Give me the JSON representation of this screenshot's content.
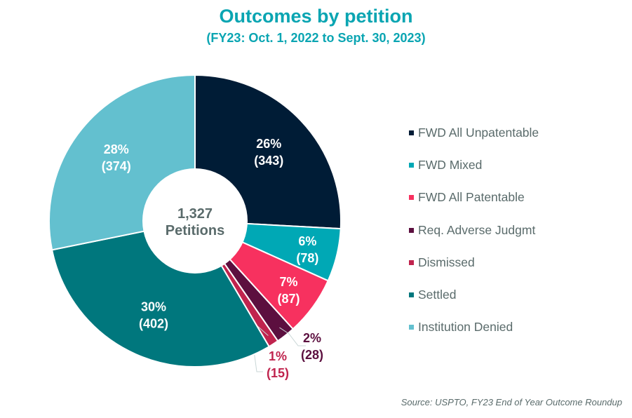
{
  "chart_data": {
    "type": "pie",
    "donut": true,
    "title": "Outcomes by petition",
    "subtitle": "(FY23: Oct. 1, 2022 to Sept. 30, 2023)",
    "center_label": {
      "value": "1,327",
      "text": "Petitions"
    },
    "legend_position": "right",
    "slices": [
      {
        "name": "FWD All Unpatentable",
        "value": 343,
        "percent": "26%",
        "count_label": "(343)",
        "color": "#001c36"
      },
      {
        "name": "FWD Mixed",
        "value": 78,
        "percent": "6%",
        "count_label": "(78)",
        "color": "#00a8b5"
      },
      {
        "name": "FWD All Patentable",
        "value": 87,
        "percent": "7%",
        "count_label": "(87)",
        "color": "#f7315f"
      },
      {
        "name": "Req. Adverse Judgmt",
        "value": 28,
        "percent": "2%",
        "count_label": "(28)",
        "color": "#5c0f3f"
      },
      {
        "name": "Dismissed",
        "value": 15,
        "percent": "1%",
        "count_label": "(15)",
        "color": "#c0244e"
      },
      {
        "name": "Settled",
        "value": 402,
        "percent": "30%",
        "count_label": "(402)",
        "color": "#00777d"
      },
      {
        "name": "Institution Denied",
        "value": 374,
        "percent": "28%",
        "count_label": "(374)",
        "color": "#63c0cf"
      }
    ],
    "source": "Source: USPTO, FY23 End of Year Outcome Roundup"
  }
}
